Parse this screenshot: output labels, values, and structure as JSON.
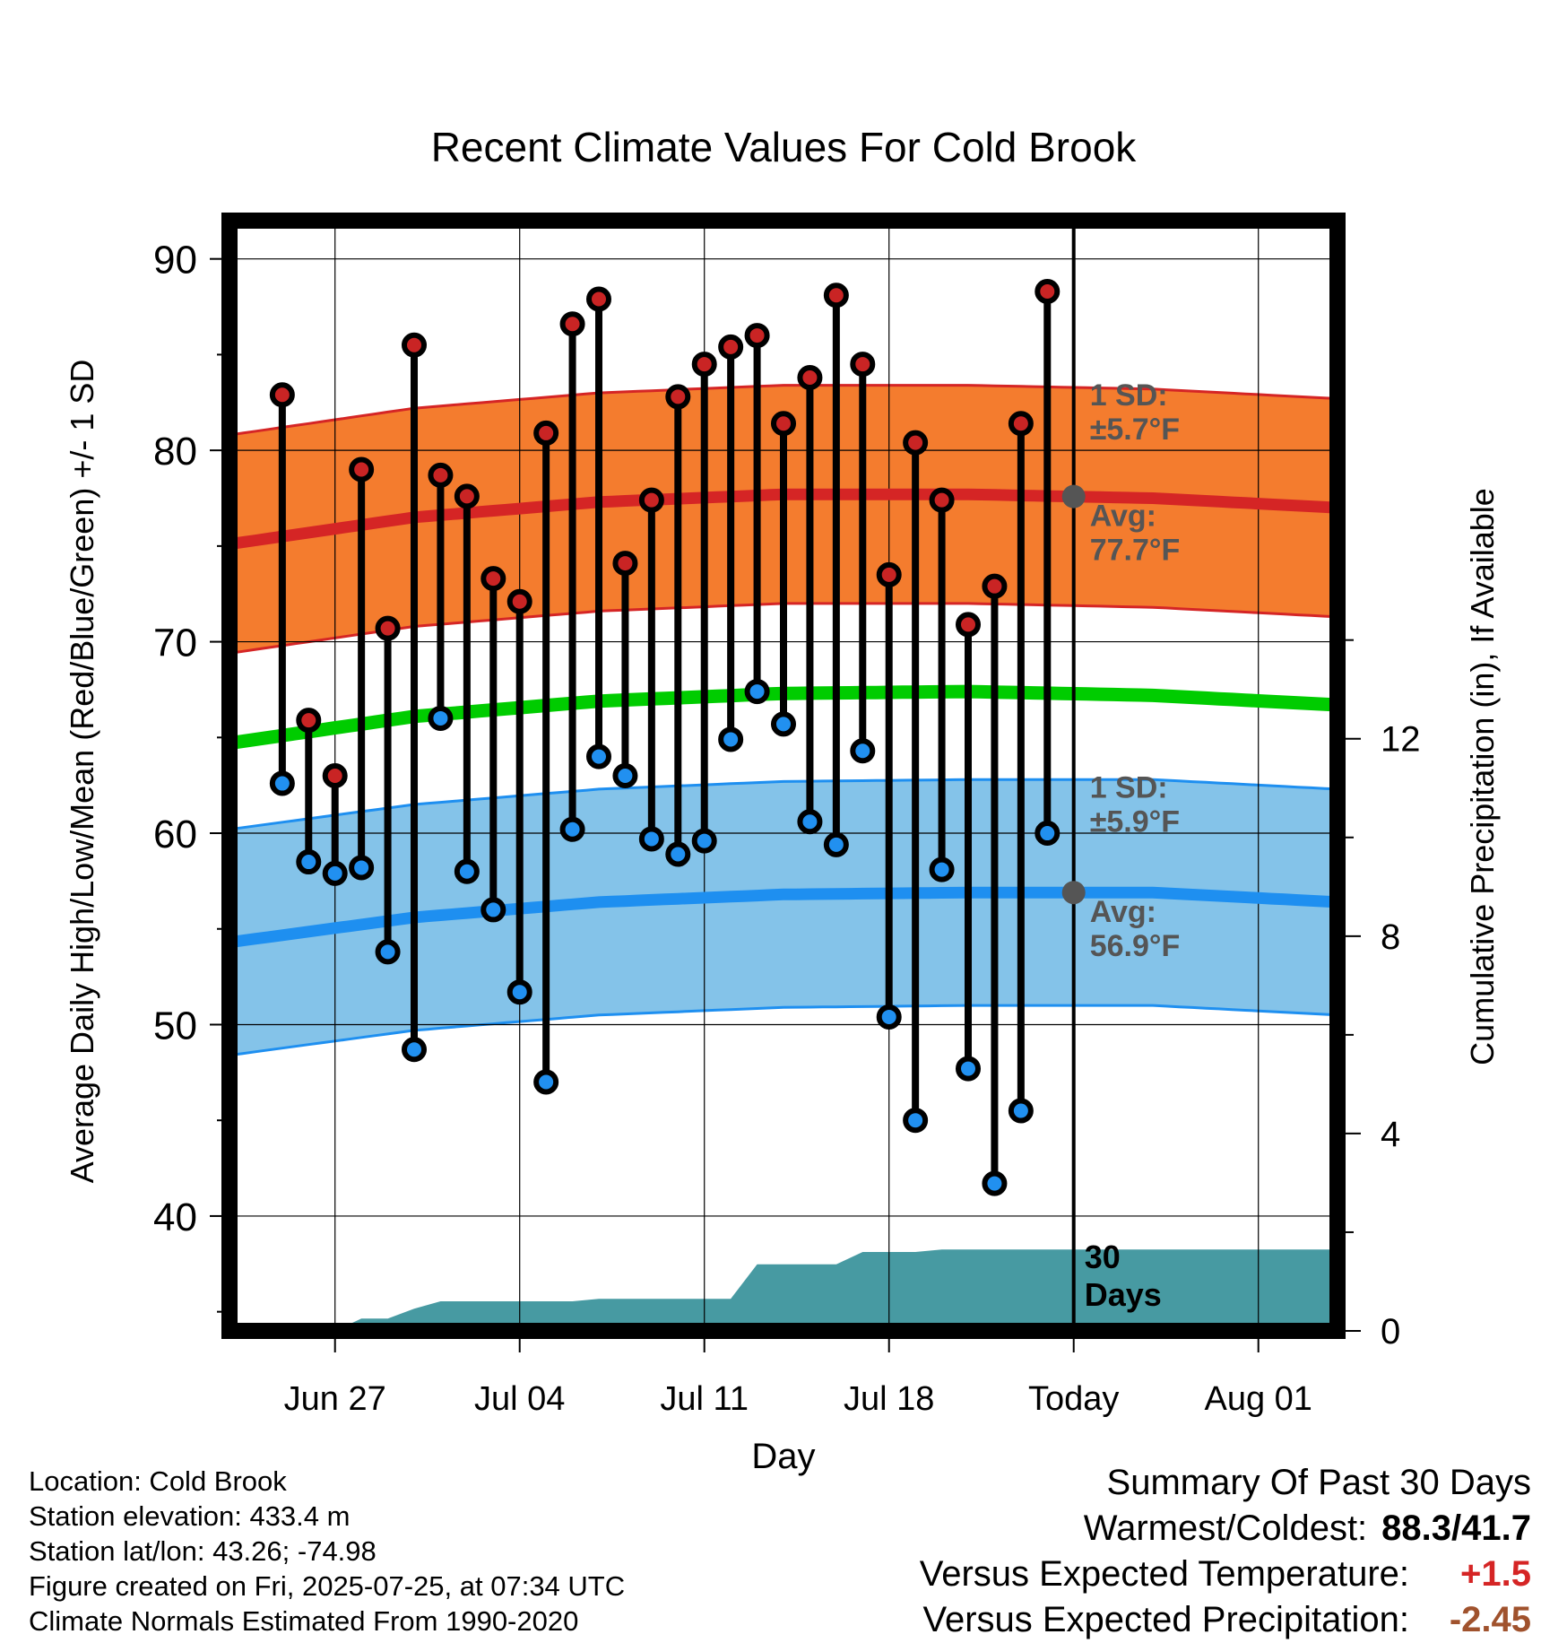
{
  "chart_data": {
    "type": "line",
    "title": "Recent Climate Values For Cold Brook",
    "xlabel": "Day",
    "ylabel": "Average Daily High/Low/Mean (Red/Blue/Green) +/- 1 SD",
    "y2label": "Cumulative Precipitation (in), If Available",
    "ylim": [
      34,
      92
    ],
    "y2lim": [
      0,
      22.5
    ],
    "yticks": [
      40,
      50,
      60,
      70,
      80,
      90
    ],
    "y2ticks": [
      0,
      4,
      8,
      12
    ],
    "xlim": [
      "2025-06-23",
      "2025-08-04"
    ],
    "xticks": [
      {
        "date": "2025-06-27",
        "label": "Jun 27"
      },
      {
        "date": "2025-07-04",
        "label": "Jul 04"
      },
      {
        "date": "2025-07-11",
        "label": "Jul 11"
      },
      {
        "date": "2025-07-18",
        "label": "Jul 18"
      },
      {
        "date": "2025-07-25",
        "label": "Today"
      },
      {
        "date": "2025-08-01",
        "label": "Aug 01"
      }
    ],
    "grid": true,
    "today": "2025-07-25",
    "observed": {
      "dates": [
        "2025-06-25",
        "2025-06-26",
        "2025-06-27",
        "2025-06-28",
        "2025-06-29",
        "2025-06-30",
        "2025-07-01",
        "2025-07-02",
        "2025-07-03",
        "2025-07-04",
        "2025-07-05",
        "2025-07-06",
        "2025-07-07",
        "2025-07-08",
        "2025-07-09",
        "2025-07-10",
        "2025-07-11",
        "2025-07-12",
        "2025-07-13",
        "2025-07-14",
        "2025-07-15",
        "2025-07-16",
        "2025-07-17",
        "2025-07-18",
        "2025-07-19",
        "2025-07-20",
        "2025-07-21",
        "2025-07-22",
        "2025-07-23",
        "2025-07-24"
      ],
      "high": [
        82.9,
        65.9,
        63.0,
        79.0,
        70.7,
        85.5,
        78.7,
        77.6,
        73.3,
        72.1,
        80.9,
        86.6,
        87.9,
        74.1,
        77.4,
        82.8,
        84.5,
        85.4,
        86.0,
        81.4,
        83.8,
        88.1,
        84.5,
        73.5,
        80.4,
        77.4,
        70.9,
        72.9,
        81.4,
        88.3
      ],
      "low": [
        62.6,
        58.5,
        57.9,
        58.2,
        53.8,
        48.7,
        66.0,
        58.0,
        56.0,
        51.7,
        47.0,
        60.2,
        64.0,
        63.0,
        59.7,
        58.9,
        59.6,
        64.9,
        67.4,
        65.7,
        60.6,
        59.4,
        64.3,
        50.4,
        45.0,
        58.1,
        47.7,
        41.7,
        45.5,
        60.0
      ]
    },
    "normals": {
      "dates": [
        "2025-06-23",
        "2025-06-30",
        "2025-07-07",
        "2025-07-14",
        "2025-07-21",
        "2025-07-28",
        "2025-08-04"
      ],
      "high_avg": [
        75.1,
        76.5,
        77.3,
        77.7,
        77.7,
        77.5,
        77.0
      ],
      "high_sd": 5.7,
      "low_avg": [
        54.3,
        55.6,
        56.4,
        56.8,
        56.9,
        56.9,
        56.4
      ],
      "low_sd": 5.9,
      "mean_avg": [
        64.7,
        66.1,
        66.9,
        67.3,
        67.4,
        67.2,
        66.7
      ]
    },
    "precip": {
      "dates": [
        "2025-06-26",
        "2025-06-27",
        "2025-06-28",
        "2025-06-29",
        "2025-06-30",
        "2025-07-01",
        "2025-07-04",
        "2025-07-05",
        "2025-07-06",
        "2025-07-07",
        "2025-07-10",
        "2025-07-12",
        "2025-07-13",
        "2025-07-15",
        "2025-07-16",
        "2025-07-17",
        "2025-07-19",
        "2025-07-20",
        "2025-08-04"
      ],
      "cumulative": [
        0.0,
        0.0,
        0.25,
        0.25,
        0.45,
        0.6,
        0.6,
        0.6,
        0.6,
        0.65,
        0.65,
        0.65,
        1.35,
        1.35,
        1.35,
        1.6,
        1.6,
        1.65,
        1.65
      ]
    },
    "annotations": {
      "high_sd_label": "1 SD:",
      "high_sd_value": "±5.7°F",
      "high_avg_label": "Avg:",
      "high_avg_value": "77.7°F",
      "low_sd_label": "1 SD:",
      "low_sd_value": "±5.9°F",
      "low_avg_label": "Avg:",
      "low_avg_value": "56.9°F",
      "days_label_1": "30",
      "days_label_2": "Days"
    },
    "colors": {
      "high_band": "#f47c2e",
      "high_line": "#d52525",
      "mean_line": "#00cc00",
      "low_band": "#84c3e9",
      "low_line": "#1e8ff0",
      "precip_fill": "#479aa2",
      "high_marker": "#c92424",
      "low_marker": "#2190f0"
    }
  },
  "info": {
    "location": "Location: Cold Brook",
    "elevation": "Station elevation: 433.4 m",
    "latlon": "Station lat/lon: 43.26; -74.98",
    "created": "Figure created on Fri, 2025-07-25, at 07:34 UTC",
    "normals": "Climate Normals Estimated From 1990-2020"
  },
  "summary": {
    "title": "Summary Of Past 30 Days",
    "warm_label": "Warmest/Coldest:",
    "warm_value": "88.3/41.7",
    "temp_label": "Versus Expected Temperature:",
    "temp_value": "+1.5",
    "temp_color": "#d52525",
    "precip_label": "Versus Expected Precipitation:",
    "precip_value": "-2.45",
    "precip_color": "#a0522d"
  }
}
